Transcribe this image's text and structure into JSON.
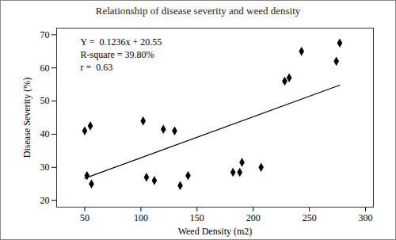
{
  "chart_data": {
    "type": "scatter",
    "title": "Relationship of disease severity and weed density",
    "x_label": "Weed Density (m2)",
    "y_label": "Disease Severity (%)",
    "x": [
      50,
      52,
      55,
      56,
      102,
      105,
      112,
      120,
      130,
      135,
      142,
      182,
      188,
      190,
      207,
      228,
      232,
      243,
      274,
      277
    ],
    "values": [
      41,
      27.5,
      42.5,
      25,
      44,
      27,
      26,
      41.5,
      41,
      24.5,
      27.5,
      28.5,
      28.5,
      31.5,
      30,
      56,
      57,
      65,
      62,
      67.5
    ],
    "color": "#000000",
    "marker": "diamond",
    "trend_line": {
      "x": [
        50,
        277
      ],
      "values": [
        26.7,
        54.8
      ],
      "color": "#000000"
    },
    "annotations": [
      "Y =  0.1236x + 20.55",
      "R-square = 39.80%",
      "r =  0.63"
    ],
    "xlim": [
      25,
      307
    ],
    "xticks": [
      50,
      100,
      150,
      200,
      250,
      300
    ],
    "ylim": [
      18,
      72
    ],
    "yticks": [
      20,
      30,
      40,
      50,
      60,
      70
    ],
    "grid": false
  }
}
